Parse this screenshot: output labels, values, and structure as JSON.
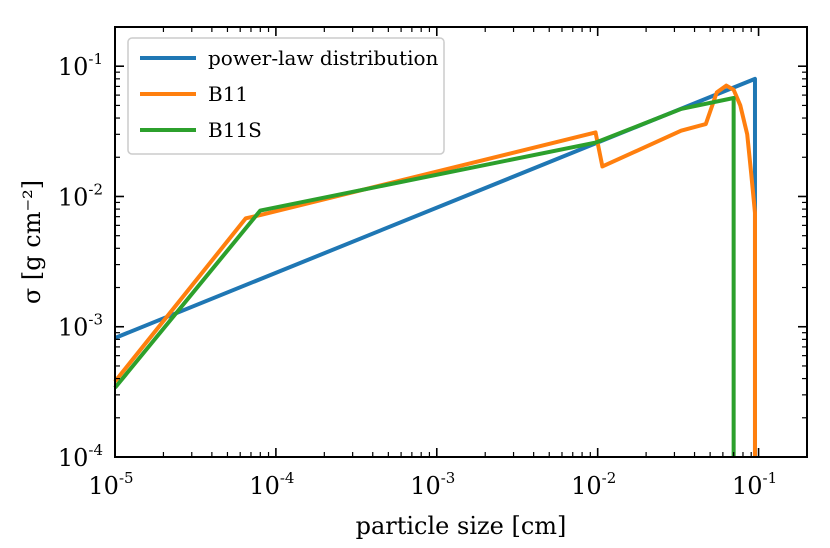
{
  "chart_data": {
    "type": "line",
    "xscale": "log",
    "yscale": "log",
    "xlabel": "particle size [cm]",
    "ylabel": "σ [g cm⁻²]",
    "xlim": [
      1e-05,
      0.2
    ],
    "ylim": [
      0.0001,
      0.2
    ],
    "x_ticks": [
      {
        "value": 1e-05,
        "base": "10",
        "exp": "-5"
      },
      {
        "value": 0.0001,
        "base": "10",
        "exp": "-4"
      },
      {
        "value": 0.001,
        "base": "10",
        "exp": "-3"
      },
      {
        "value": 0.01,
        "base": "10",
        "exp": "-2"
      },
      {
        "value": 0.1,
        "base": "10",
        "exp": "-1"
      }
    ],
    "y_ticks": [
      {
        "value": 0.0001,
        "base": "10",
        "exp": "-4"
      },
      {
        "value": 0.001,
        "base": "10",
        "exp": "-3"
      },
      {
        "value": 0.01,
        "base": "10",
        "exp": "-2"
      },
      {
        "value": 0.1,
        "base": "10",
        "exp": "-1"
      }
    ],
    "legend_position": "top-left",
    "series": [
      {
        "name": "power-law distribution",
        "color": "#1f77b4",
        "points": [
          [
            1e-05,
            0.00082
          ],
          [
            0.095,
            0.08
          ],
          [
            0.095,
            0.0001
          ]
        ]
      },
      {
        "name": "B11",
        "color": "#ff7f0e",
        "points": [
          [
            1e-05,
            0.00038
          ],
          [
            6.5e-05,
            0.0068
          ],
          [
            8e-05,
            0.0072
          ],
          [
            0.0097,
            0.031
          ],
          [
            0.0107,
            0.017
          ],
          [
            0.033,
            0.032
          ],
          [
            0.047,
            0.036
          ],
          [
            0.055,
            0.063
          ],
          [
            0.063,
            0.071
          ],
          [
            0.07,
            0.066
          ],
          [
            0.077,
            0.05
          ],
          [
            0.085,
            0.03
          ],
          [
            0.09,
            0.015
          ],
          [
            0.095,
            0.0075
          ],
          [
            0.095,
            0.0001
          ]
        ]
      },
      {
        "name": "B11S",
        "color": "#2ca02c",
        "points": [
          [
            1e-05,
            0.00034
          ],
          [
            8e-05,
            0.0078
          ],
          [
            0.0098,
            0.026
          ],
          [
            0.033,
            0.047
          ],
          [
            0.07,
            0.057
          ],
          [
            0.07,
            0.0001
          ]
        ]
      }
    ]
  }
}
